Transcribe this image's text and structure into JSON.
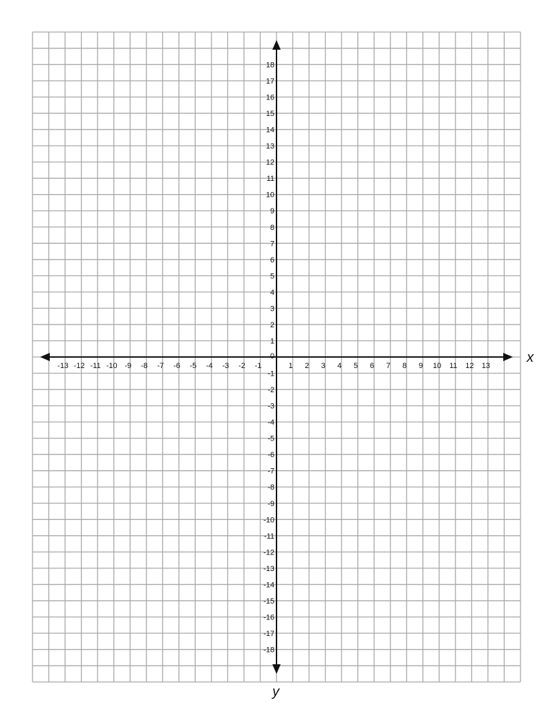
{
  "chart_data": {
    "type": "coordinate-grid",
    "xlabel": "x",
    "ylabel": "y",
    "xlim": [
      -15,
      15
    ],
    "ylim": [
      -20,
      20
    ],
    "grid": true,
    "x_tick_labels": [
      "-13",
      "-12",
      "-11",
      "-10",
      "-9",
      "-8",
      "-7",
      "-6",
      "-5",
      "-4",
      "-3",
      "-2",
      "-1",
      "0",
      "1",
      "2",
      "3",
      "4",
      "5",
      "6",
      "7",
      "8",
      "9",
      "10",
      "11",
      "12",
      "13"
    ],
    "y_tick_labels": [
      "18",
      "17",
      "16",
      "15",
      "14",
      "13",
      "12",
      "11",
      "10",
      "9",
      "8",
      "7",
      "6",
      "5",
      "4",
      "3",
      "2",
      "1",
      "0",
      "-1",
      "-2",
      "-3",
      "-4",
      "-5",
      "-6",
      "-7",
      "-8",
      "-9",
      "-10",
      "-11",
      "-12",
      "-13",
      "-14",
      "-15",
      "-16",
      "-17",
      "-18"
    ],
    "colors": {
      "grid": "#a8a8a8",
      "axis": "#111111"
    }
  }
}
